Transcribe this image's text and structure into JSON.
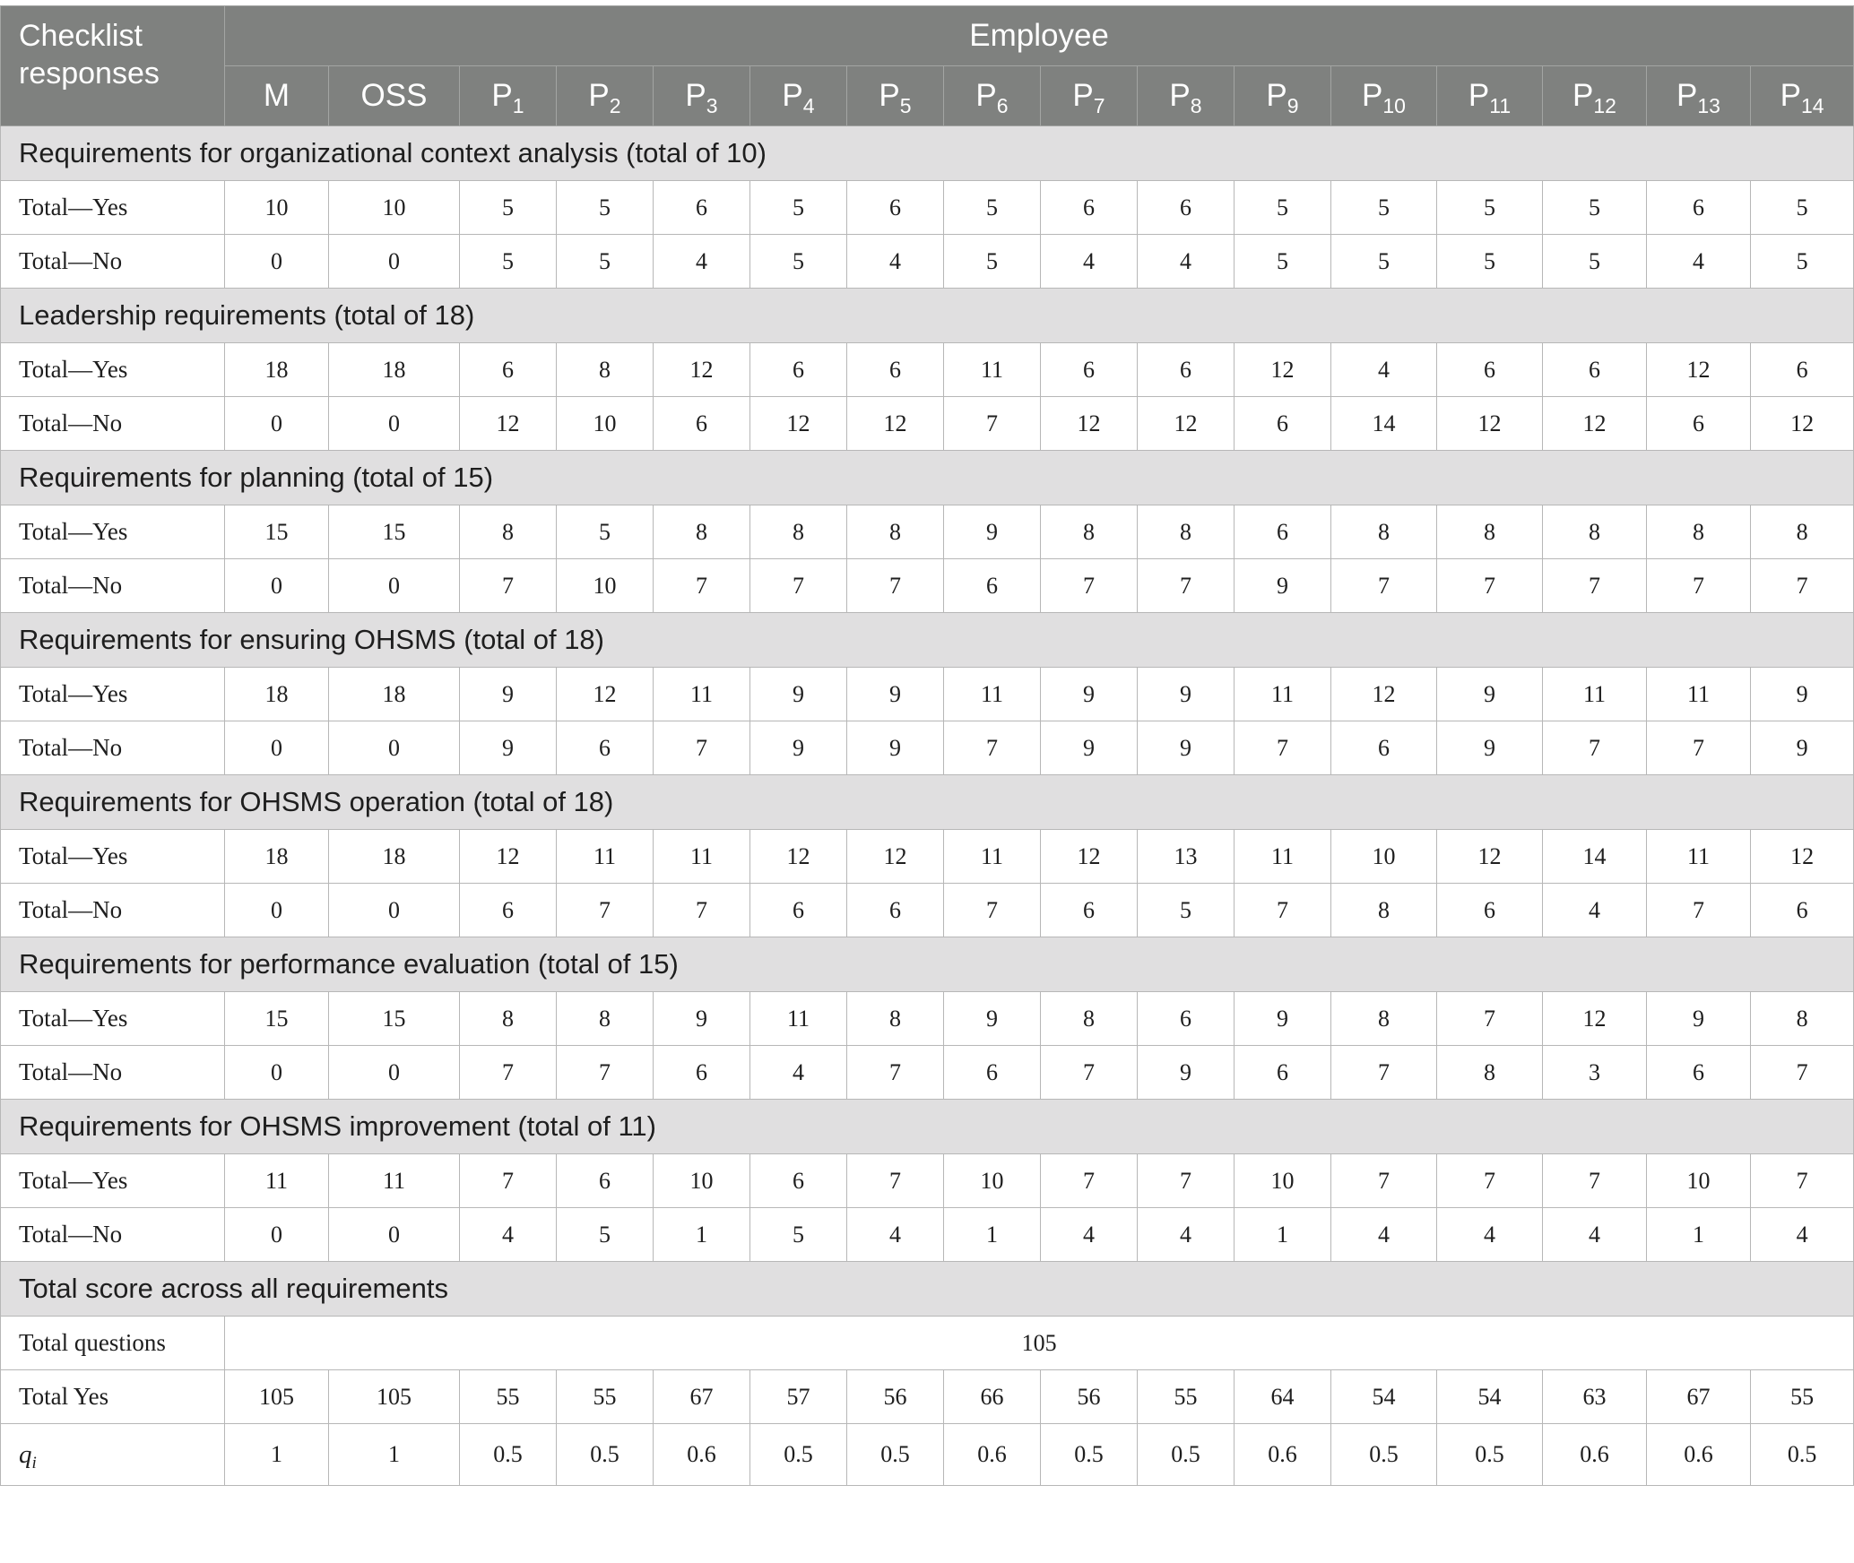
{
  "header": {
    "corner_label": "Checklist responses",
    "group_label": "Employee",
    "columns": [
      {
        "base": "M",
        "sub": ""
      },
      {
        "base": "OSS",
        "sub": ""
      },
      {
        "base": "P",
        "sub": "1"
      },
      {
        "base": "P",
        "sub": "2"
      },
      {
        "base": "P",
        "sub": "3"
      },
      {
        "base": "P",
        "sub": "4"
      },
      {
        "base": "P",
        "sub": "5"
      },
      {
        "base": "P",
        "sub": "6"
      },
      {
        "base": "P",
        "sub": "7"
      },
      {
        "base": "P",
        "sub": "8"
      },
      {
        "base": "P",
        "sub": "9"
      },
      {
        "base": "P",
        "sub": "10"
      },
      {
        "base": "P",
        "sub": "11"
      },
      {
        "base": "P",
        "sub": "12"
      },
      {
        "base": "P",
        "sub": "13"
      },
      {
        "base": "P",
        "sub": "14"
      }
    ]
  },
  "sections": [
    {
      "title": "Requirements for organizational context analysis (total of 10)",
      "rows": [
        {
          "label": "Total—Yes",
          "values": [
            "10",
            "10",
            "5",
            "5",
            "6",
            "5",
            "6",
            "5",
            "6",
            "6",
            "5",
            "5",
            "5",
            "5",
            "6",
            "5"
          ]
        },
        {
          "label": "Total—No",
          "values": [
            "0",
            "0",
            "5",
            "5",
            "4",
            "5",
            "4",
            "5",
            "4",
            "4",
            "5",
            "5",
            "5",
            "5",
            "4",
            "5"
          ]
        }
      ]
    },
    {
      "title": "Leadership requirements (total of 18)",
      "rows": [
        {
          "label": "Total—Yes",
          "values": [
            "18",
            "18",
            "6",
            "8",
            "12",
            "6",
            "6",
            "11",
            "6",
            "6",
            "12",
            "4",
            "6",
            "6",
            "12",
            "6"
          ]
        },
        {
          "label": "Total—No",
          "values": [
            "0",
            "0",
            "12",
            "10",
            "6",
            "12",
            "12",
            "7",
            "12",
            "12",
            "6",
            "14",
            "12",
            "12",
            "6",
            "12"
          ]
        }
      ]
    },
    {
      "title": "Requirements for planning (total of 15)",
      "rows": [
        {
          "label": "Total—Yes",
          "values": [
            "15",
            "15",
            "8",
            "5",
            "8",
            "8",
            "8",
            "9",
            "8",
            "8",
            "6",
            "8",
            "8",
            "8",
            "8",
            "8"
          ]
        },
        {
          "label": "Total—No",
          "values": [
            "0",
            "0",
            "7",
            "10",
            "7",
            "7",
            "7",
            "6",
            "7",
            "7",
            "9",
            "7",
            "7",
            "7",
            "7",
            "7"
          ]
        }
      ]
    },
    {
      "title": "Requirements for ensuring OHSMS (total of 18)",
      "rows": [
        {
          "label": "Total—Yes",
          "values": [
            "18",
            "18",
            "9",
            "12",
            "11",
            "9",
            "9",
            "11",
            "9",
            "9",
            "11",
            "12",
            "9",
            "11",
            "11",
            "9"
          ]
        },
        {
          "label": "Total—No",
          "values": [
            "0",
            "0",
            "9",
            "6",
            "7",
            "9",
            "9",
            "7",
            "9",
            "9",
            "7",
            "6",
            "9",
            "7",
            "7",
            "9"
          ]
        }
      ]
    },
    {
      "title": "Requirements for OHSMS operation (total of 18)",
      "rows": [
        {
          "label": "Total—Yes",
          "values": [
            "18",
            "18",
            "12",
            "11",
            "11",
            "12",
            "12",
            "11",
            "12",
            "13",
            "11",
            "10",
            "12",
            "14",
            "11",
            "12"
          ]
        },
        {
          "label": "Total—No",
          "values": [
            "0",
            "0",
            "6",
            "7",
            "7",
            "6",
            "6",
            "7",
            "6",
            "5",
            "7",
            "8",
            "6",
            "4",
            "7",
            "6"
          ]
        }
      ]
    },
    {
      "title": "Requirements for performance evaluation (total of 15)",
      "rows": [
        {
          "label": "Total—Yes",
          "values": [
            "15",
            "15",
            "8",
            "8",
            "9",
            "11",
            "8",
            "9",
            "8",
            "6",
            "9",
            "8",
            "7",
            "12",
            "9",
            "8"
          ]
        },
        {
          "label": "Total—No",
          "values": [
            "0",
            "0",
            "7",
            "7",
            "6",
            "4",
            "7",
            "6",
            "7",
            "9",
            "6",
            "7",
            "8",
            "3",
            "6",
            "7"
          ]
        }
      ]
    },
    {
      "title": "Requirements for OHSMS improvement (total of 11)",
      "rows": [
        {
          "label": "Total—Yes",
          "values": [
            "11",
            "11",
            "7",
            "6",
            "10",
            "6",
            "7",
            "10",
            "7",
            "7",
            "10",
            "7",
            "7",
            "7",
            "10",
            "7"
          ]
        },
        {
          "label": "Total—No",
          "values": [
            "0",
            "0",
            "4",
            "5",
            "1",
            "5",
            "4",
            "1",
            "4",
            "4",
            "1",
            "4",
            "4",
            "4",
            "1",
            "4"
          ]
        }
      ]
    }
  ],
  "totals": {
    "title": "Total score across all requirements",
    "total_questions_label": "Total questions",
    "total_questions_value": "105",
    "total_yes_label": "Total Yes",
    "total_yes_values": [
      "105",
      "105",
      "55",
      "55",
      "67",
      "57",
      "56",
      "66",
      "56",
      "55",
      "64",
      "54",
      "54",
      "63",
      "67",
      "55"
    ],
    "qi_label_base": "q",
    "qi_label_sub": "i",
    "qi_values": [
      "1",
      "1",
      "0.5",
      "0.5",
      "0.6",
      "0.5",
      "0.5",
      "0.6",
      "0.5",
      "0.5",
      "0.6",
      "0.5",
      "0.5",
      "0.6",
      "0.6",
      "0.5"
    ]
  }
}
